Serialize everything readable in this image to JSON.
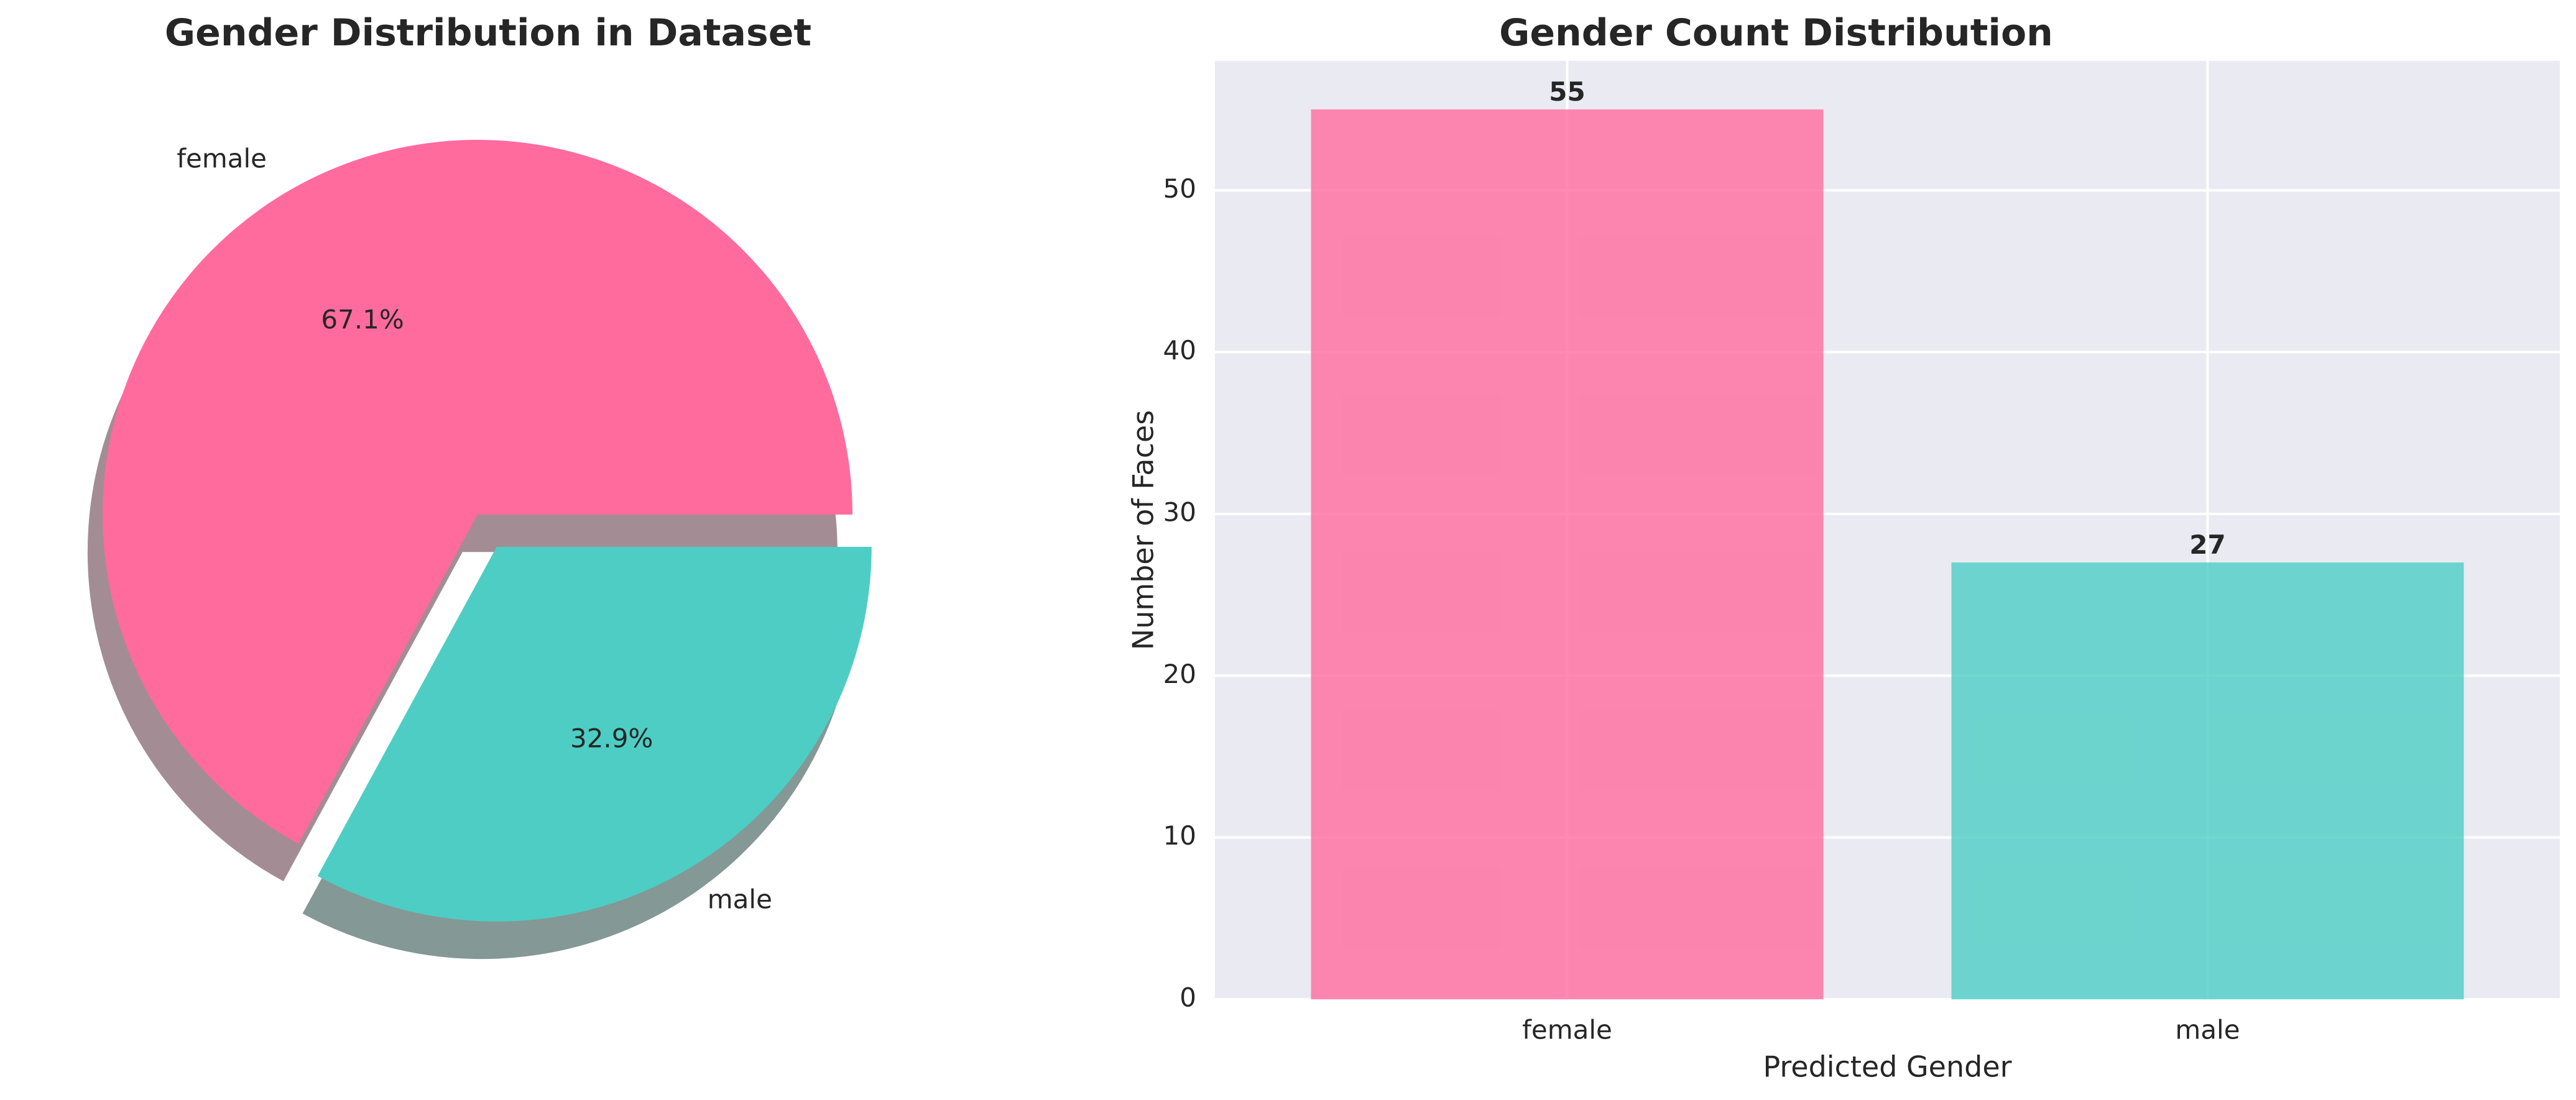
{
  "chart_data": [
    {
      "type": "pie",
      "title": "Gender Distribution in Dataset",
      "labels": [
        "female",
        "male"
      ],
      "values": [
        55,
        27
      ],
      "percent_labels": [
        "67.1%",
        "32.9%"
      ],
      "colors": [
        "#ff6b9d",
        "#4ecdc4"
      ],
      "exploded": [
        false,
        true
      ],
      "shadow": true
    },
    {
      "type": "bar",
      "title": "Gender Count Distribution",
      "categories": [
        "female",
        "male"
      ],
      "values": [
        55,
        27
      ],
      "value_labels": [
        "55",
        "27"
      ],
      "colors": [
        "#ff6b9d",
        "#4ecdc4"
      ],
      "xlabel": "Predicted Gender",
      "ylabel": "Number of Faces",
      "ylim": [
        0,
        58
      ],
      "yticks": [
        "0",
        "10",
        "20",
        "30",
        "40",
        "50"
      ],
      "grid": true
    }
  ]
}
